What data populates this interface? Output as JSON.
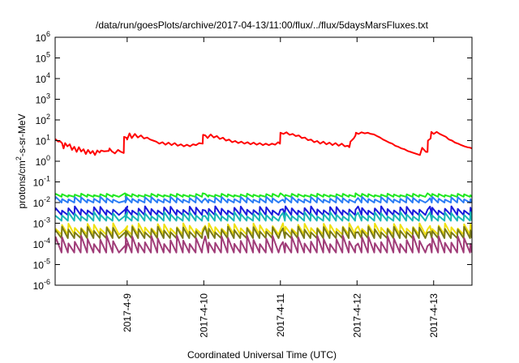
{
  "chart_data": {
    "type": "line",
    "title": "/data/run/goesPlots/archive/2017-04-13/11:00/flux/../flux/5daysMarsFluxes.txt",
    "xlabel": "Coordinated Universal Time (UTC)",
    "ylabel": {
      "base": "protons/cm",
      "sup": "2",
      "rest": "-s-sr-MeV"
    },
    "yscale": "log",
    "ylim_exp": [
      -6,
      6
    ],
    "y_ticks": [
      {
        "base": "10",
        "exp": "-6",
        "v": -6
      },
      {
        "base": "10",
        "exp": "-5",
        "v": -5
      },
      {
        "base": "10",
        "exp": "-4",
        "v": -4
      },
      {
        "base": "10",
        "exp": "-3",
        "v": -3
      },
      {
        "base": "10",
        "exp": "-2",
        "v": -2
      },
      {
        "base": "10",
        "exp": "-1",
        "v": -1
      },
      {
        "base": "10",
        "exp": "0",
        "v": 0
      },
      {
        "base": "10",
        "exp": "1",
        "v": 1
      },
      {
        "base": "10",
        "exp": "2",
        "v": 2
      },
      {
        "base": "10",
        "exp": "3",
        "v": 3
      },
      {
        "base": "10",
        "exp": "4",
        "v": 4
      },
      {
        "base": "10",
        "exp": "5",
        "v": 5
      },
      {
        "base": "10",
        "exp": "6",
        "v": 6
      }
    ],
    "x_range_days": [
      8.06,
      13.5
    ],
    "x_ticks": [
      {
        "label": "2017-4-9",
        "day": 9
      },
      {
        "label": "2017-4-10",
        "day": 10
      },
      {
        "label": "2017-4-11",
        "day": 11
      },
      {
        "label": "2017-4-12",
        "day": 12
      },
      {
        "label": "2017-4-13",
        "day": 13
      }
    ],
    "grid": false,
    "legend": "none",
    "series": [
      {
        "color": "#ff0000",
        "log_y": [
          [
            8.06,
            1.08
          ],
          [
            8.1,
            0.95
          ],
          [
            8.12,
            0.98
          ],
          [
            8.15,
            0.88
          ],
          [
            8.17,
            0.62
          ],
          [
            8.19,
            0.88
          ],
          [
            8.22,
            0.72
          ],
          [
            8.25,
            0.82
          ],
          [
            8.28,
            0.55
          ],
          [
            8.31,
            0.7
          ],
          [
            8.34,
            0.45
          ],
          [
            8.37,
            0.68
          ],
          [
            8.4,
            0.47
          ],
          [
            8.43,
            0.58
          ],
          [
            8.46,
            0.35
          ],
          [
            8.49,
            0.55
          ],
          [
            8.52,
            0.38
          ],
          [
            8.55,
            0.5
          ],
          [
            8.58,
            0.3
          ],
          [
            8.61,
            0.52
          ],
          [
            8.64,
            0.42
          ],
          [
            8.66,
            0.52
          ],
          [
            8.7,
            0.48
          ],
          [
            8.76,
            0.5
          ],
          [
            8.77,
            0.62
          ],
          [
            8.8,
            0.48
          ],
          [
            8.84,
            0.38
          ],
          [
            8.88,
            0.55
          ],
          [
            8.92,
            0.45
          ],
          [
            8.955,
            0.4
          ],
          [
            8.96,
            1.18
          ],
          [
            8.99,
            1.14
          ],
          [
            9.0,
            1.05
          ],
          [
            9.03,
            1.35
          ],
          [
            9.06,
            1.12
          ],
          [
            9.1,
            1.32
          ],
          [
            9.14,
            1.15
          ],
          [
            9.18,
            1.25
          ],
          [
            9.22,
            1.1
          ],
          [
            9.26,
            1.15
          ],
          [
            9.3,
            1.05
          ],
          [
            9.34,
            1.0
          ],
          [
            9.38,
            0.95
          ],
          [
            9.42,
            0.85
          ],
          [
            9.46,
            0.92
          ],
          [
            9.5,
            0.8
          ],
          [
            9.54,
            0.9
          ],
          [
            9.58,
            0.78
          ],
          [
            9.62,
            0.88
          ],
          [
            9.66,
            0.75
          ],
          [
            9.7,
            0.82
          ],
          [
            9.74,
            0.72
          ],
          [
            9.78,
            0.8
          ],
          [
            9.82,
            0.72
          ],
          [
            9.86,
            0.82
          ],
          [
            9.9,
            0.78
          ],
          [
            9.94,
            0.88
          ],
          [
            9.985,
            0.85
          ],
          [
            9.99,
            1.28
          ],
          [
            10.02,
            1.25
          ],
          [
            10.05,
            1.12
          ],
          [
            10.09,
            1.3
          ],
          [
            10.13,
            1.15
          ],
          [
            10.17,
            1.22
          ],
          [
            10.21,
            1.08
          ],
          [
            10.25,
            1.14
          ],
          [
            10.29,
            1.0
          ],
          [
            10.33,
            1.05
          ],
          [
            10.37,
            0.92
          ],
          [
            10.41,
            0.98
          ],
          [
            10.45,
            0.88
          ],
          [
            10.49,
            0.95
          ],
          [
            10.53,
            0.85
          ],
          [
            10.57,
            0.92
          ],
          [
            10.61,
            0.82
          ],
          [
            10.65,
            0.9
          ],
          [
            10.69,
            0.8
          ],
          [
            10.73,
            0.88
          ],
          [
            10.77,
            0.78
          ],
          [
            10.81,
            0.85
          ],
          [
            10.85,
            0.78
          ],
          [
            10.89,
            0.85
          ],
          [
            10.93,
            0.8
          ],
          [
            10.97,
            0.92
          ],
          [
            10.995,
            0.85
          ],
          [
            11.0,
            1.38
          ],
          [
            11.04,
            1.32
          ],
          [
            11.08,
            1.4
          ],
          [
            11.12,
            1.28
          ],
          [
            11.16,
            1.32
          ],
          [
            11.2,
            1.22
          ],
          [
            11.24,
            1.25
          ],
          [
            11.28,
            1.12
          ],
          [
            11.32,
            1.15
          ],
          [
            11.36,
            1.02
          ],
          [
            11.4,
            1.05
          ],
          [
            11.44,
            0.92
          ],
          [
            11.48,
            0.98
          ],
          [
            11.52,
            0.85
          ],
          [
            11.56,
            0.95
          ],
          [
            11.6,
            0.82
          ],
          [
            11.64,
            0.9
          ],
          [
            11.68,
            0.78
          ],
          [
            11.72,
            0.88
          ],
          [
            11.76,
            0.75
          ],
          [
            11.8,
            0.85
          ],
          [
            11.84,
            0.72
          ],
          [
            11.88,
            0.75
          ],
          [
            11.9,
            0.68
          ],
          [
            11.915,
            0.95
          ],
          [
            11.96,
            1.12
          ],
          [
            11.98,
            1.25
          ],
          [
            11.985,
            1.38
          ],
          [
            12.02,
            1.32
          ],
          [
            12.06,
            1.4
          ],
          [
            12.1,
            1.35
          ],
          [
            12.14,
            1.38
          ],
          [
            12.18,
            1.32
          ],
          [
            12.22,
            1.3
          ],
          [
            12.26,
            1.22
          ],
          [
            12.3,
            1.15
          ],
          [
            12.34,
            1.05
          ],
          [
            12.38,
            0.98
          ],
          [
            12.42,
            0.9
          ],
          [
            12.46,
            0.85
          ],
          [
            12.5,
            0.75
          ],
          [
            12.54,
            0.7
          ],
          [
            12.58,
            0.62
          ],
          [
            12.62,
            0.58
          ],
          [
            12.66,
            0.5
          ],
          [
            12.7,
            0.45
          ],
          [
            12.74,
            0.4
          ],
          [
            12.78,
            0.35
          ],
          [
            12.82,
            0.3
          ],
          [
            12.85,
            0.65
          ],
          [
            12.9,
            0.45
          ],
          [
            12.92,
            0.45
          ],
          [
            12.925,
            1.0
          ],
          [
            12.96,
            1.1
          ],
          [
            12.97,
            1.42
          ],
          [
            13.0,
            1.32
          ],
          [
            13.04,
            1.42
          ],
          [
            13.08,
            1.32
          ],
          [
            13.12,
            1.25
          ],
          [
            13.16,
            1.18
          ],
          [
            13.2,
            1.05
          ],
          [
            13.24,
            1.0
          ],
          [
            13.28,
            0.9
          ],
          [
            13.32,
            0.85
          ],
          [
            13.36,
            0.78
          ],
          [
            13.4,
            0.72
          ],
          [
            13.44,
            0.68
          ],
          [
            13.48,
            0.65
          ],
          [
            13.5,
            0.62
          ]
        ]
      },
      {
        "color": "#1fe81f",
        "base": -1.72,
        "amp": 0.15,
        "gap": -1.55
      },
      {
        "color": "#2b7cf5",
        "base": -2.0,
        "amp": 0.28,
        "gap": -1.92
      },
      {
        "color": "#1a1adc",
        "base": -2.6,
        "amp": 0.42,
        "gap": -2.35
      },
      {
        "color": "#1ab7b7",
        "base": -2.88,
        "amp": 0.42,
        "gap": -2.65
      },
      {
        "color": "#f0e010",
        "base": -3.55,
        "amp": 0.55,
        "gap": -3.3
      },
      {
        "color": "#7a7a18",
        "base": -3.72,
        "amp": 0.55,
        "gap": -3.45
      },
      {
        "color": "#a03c78",
        "base": -4.42,
        "amp": 0.82,
        "gap": -4.1
      }
    ],
    "sawtooth": {
      "period_days": 0.0833,
      "gap_days": [
        8.97,
        9.985,
        11.0,
        11.98,
        12.92
      ]
    }
  }
}
